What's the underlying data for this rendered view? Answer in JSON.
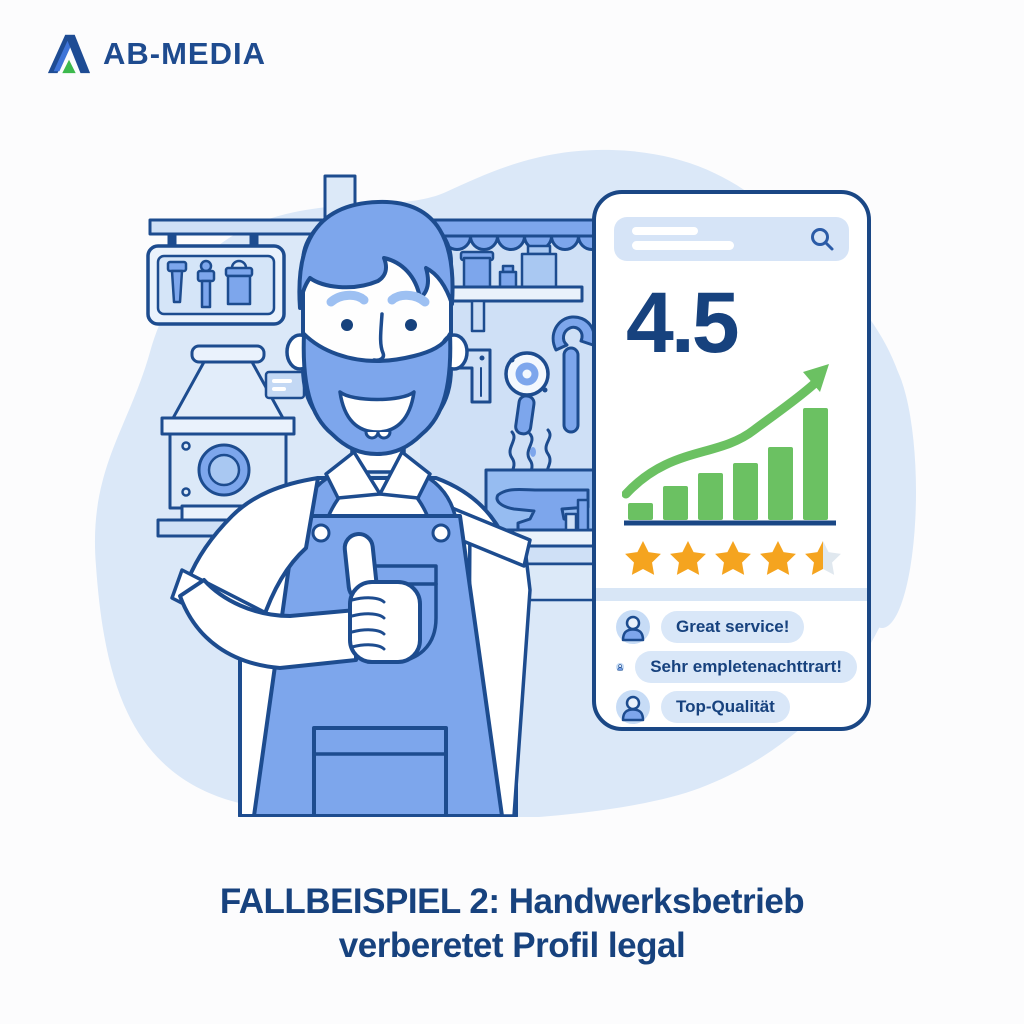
{
  "logo": {
    "text": "AB-MEDIA"
  },
  "phone": {
    "rating": "4.5",
    "stars_value": 4.5,
    "reviews": [
      {
        "text": "Great service!"
      },
      {
        "text": "Sehr empletenachttrart!"
      },
      {
        "text": "Top-Qualität"
      }
    ]
  },
  "chart_data": {
    "type": "bar",
    "categories": [
      "1",
      "2",
      "3",
      "4",
      "5",
      "6"
    ],
    "values": [
      15,
      30,
      42,
      51,
      65,
      100
    ],
    "title": "",
    "xlabel": "",
    "ylabel": "",
    "ylim": [
      0,
      100
    ],
    "legend": false,
    "grid": false,
    "annotations": [
      "green curved upward trend arrow above bars",
      "navy baseline under bars"
    ]
  },
  "caption": {
    "line1": "FALLBEISPIEL 2: Handwerksbetrieb",
    "line2": "verberetet Profil legal"
  },
  "colors": {
    "navy": "#1d4c8f",
    "text_navy": "#17427e",
    "blue": "#7da6ec",
    "light_blue": "#dce9f8",
    "bubble": "#d9e7f8",
    "green": "#6bc162",
    "star": "#f5a41f",
    "star_empty": "#e0e8ef"
  }
}
